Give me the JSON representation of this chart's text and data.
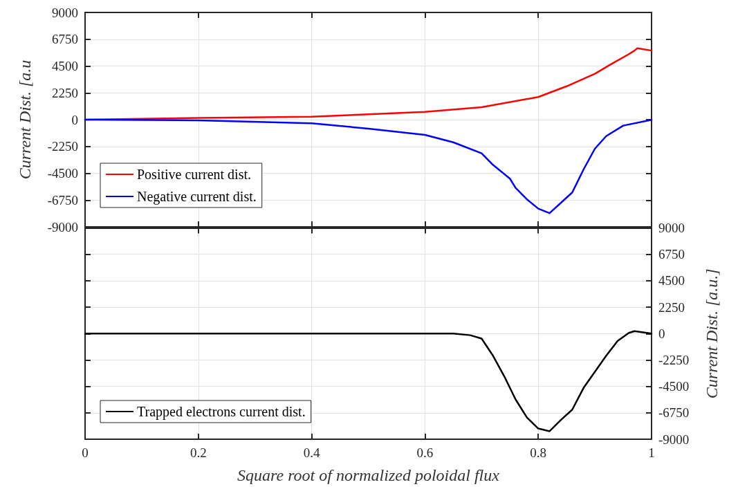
{
  "chart_data": [
    {
      "type": "line",
      "ylabel": "Current Dist. [a.u",
      "xlim": [
        0,
        1
      ],
      "xticks": [
        0,
        0.2,
        0.4,
        0.6,
        0.8,
        1
      ],
      "ylim": [
        -9000,
        9000
      ],
      "yticks": [
        -9000,
        -6750,
        -4500,
        -2250,
        0,
        2250,
        4500,
        6750,
        9000
      ],
      "grid": true,
      "legend": "bottom left",
      "tick_labels": "y",
      "marker": "none",
      "line_style": "solid",
      "series": [
        {
          "name": "Positive current dist.",
          "color": "#ff0000",
          "x": [
            0,
            0.2,
            0.4,
            0.5,
            0.6,
            0.7,
            0.8,
            0.85,
            0.9,
            0.93,
            0.96,
            0.97,
            0.975,
            1
          ],
          "values": [
            0,
            150,
            250,
            450,
            650,
            1050,
            1900,
            2800,
            3850,
            4700,
            5500,
            5800,
            6000,
            5800
          ]
        },
        {
          "name": "Negative current dist.",
          "color": "#0000ff",
          "x": [
            0,
            0.2,
            0.4,
            0.5,
            0.6,
            0.65,
            0.7,
            0.72,
            0.75,
            0.76,
            0.78,
            0.8,
            0.82,
            0.84,
            0.86,
            0.88,
            0.9,
            0.92,
            0.95,
            1
          ],
          "values": [
            0,
            -60,
            -310,
            -750,
            -1280,
            -1900,
            -2820,
            -3790,
            -4950,
            -5730,
            -6690,
            -7470,
            -7850,
            -6980,
            -6110,
            -4180,
            -2440,
            -1380,
            -500,
            -20
          ]
        }
      ]
    },
    {
      "type": "line",
      "xlabel": "Square root of normalized poloidal flux",
      "y2label": "Current Dist. [a.u.]",
      "xlim": [
        0,
        1
      ],
      "xticks": [
        0,
        0.2,
        0.4,
        0.6,
        0.8,
        1
      ],
      "y2lim": [
        -9000,
        9000
      ],
      "y2ticks": [
        -9000,
        -6750,
        -4500,
        -2250,
        0,
        2250,
        4500,
        6750,
        9000
      ],
      "grid": true,
      "legend": "bottom left",
      "marker": "none",
      "line_style": "solid",
      "series": [
        {
          "name": "Trapped electrons current dist.",
          "color": "#000000",
          "axis": "y2",
          "x": [
            0,
            0.65,
            0.68,
            0.7,
            0.72,
            0.74,
            0.76,
            0.78,
            0.8,
            0.82,
            0.84,
            0.86,
            0.88,
            0.9,
            0.92,
            0.94,
            0.96,
            0.97,
            1
          ],
          "values": [
            0,
            0,
            -140,
            -430,
            -1880,
            -3640,
            -5610,
            -7150,
            -8090,
            -8320,
            -7360,
            -6480,
            -4630,
            -3260,
            -1890,
            -630,
            60,
            210,
            0
          ]
        }
      ]
    }
  ]
}
